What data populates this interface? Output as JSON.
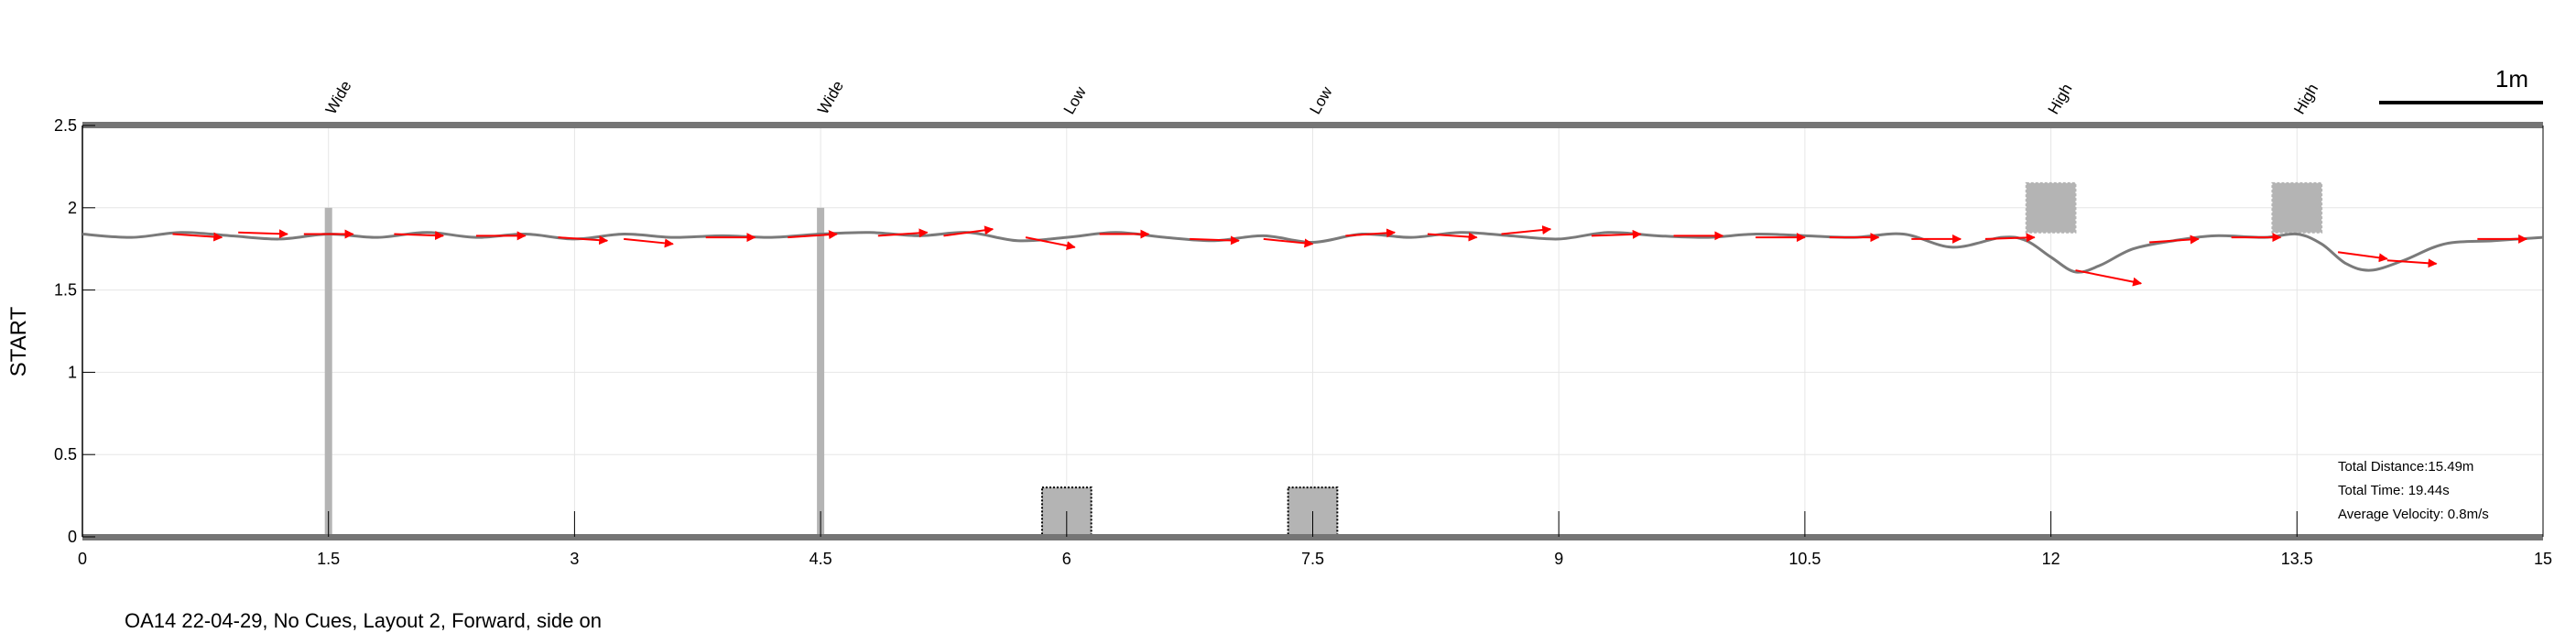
{
  "caption": "OA14 22-04-29, No Cues, Layout 2, Forward, side on",
  "chart_data": {
    "type": "line",
    "title": "",
    "xlabel": "",
    "ylabel": "START",
    "xlim": [
      0,
      15
    ],
    "ylim": [
      0,
      2.5
    ],
    "grid": true,
    "x_ticks": [
      0,
      1.5,
      3,
      4.5,
      6,
      7.5,
      9,
      10.5,
      12,
      13.5,
      15
    ],
    "x_tick_labels": [
      "0",
      "1.5",
      "3",
      "4.5",
      "6",
      "7.5",
      "9",
      "10.5",
      "12",
      "13.5",
      "15"
    ],
    "y_ticks": [
      0,
      0.5,
      1,
      1.5,
      2,
      2.5
    ],
    "y_tick_labels": [
      "0",
      "0.5",
      "1",
      "1.5",
      "2",
      "2.5"
    ],
    "path_color": "#7a7a7a",
    "arrow_color": "#ff0000",
    "obstacle_color": "#b4b4b4",
    "path": {
      "x": [
        0,
        0.3,
        0.6,
        0.9,
        1.2,
        1.5,
        1.8,
        2.1,
        2.4,
        2.7,
        3.0,
        3.3,
        3.6,
        3.9,
        4.2,
        4.5,
        4.8,
        5.1,
        5.4,
        5.7,
        6.0,
        6.3,
        6.6,
        6.9,
        7.2,
        7.5,
        7.8,
        8.1,
        8.4,
        8.7,
        9.0,
        9.3,
        9.6,
        9.9,
        10.2,
        10.5,
        10.8,
        11.1,
        11.4,
        11.7,
        11.85,
        12.0,
        12.15,
        12.3,
        12.5,
        12.75,
        13.0,
        13.3,
        13.5,
        13.65,
        13.8,
        13.95,
        14.15,
        14.4,
        14.7,
        15.0
      ],
      "y": [
        1.84,
        1.82,
        1.85,
        1.83,
        1.81,
        1.84,
        1.82,
        1.85,
        1.82,
        1.84,
        1.81,
        1.84,
        1.82,
        1.83,
        1.82,
        1.84,
        1.85,
        1.83,
        1.85,
        1.8,
        1.82,
        1.85,
        1.82,
        1.8,
        1.83,
        1.79,
        1.84,
        1.82,
        1.85,
        1.83,
        1.81,
        1.85,
        1.83,
        1.82,
        1.84,
        1.83,
        1.82,
        1.84,
        1.76,
        1.82,
        1.8,
        1.7,
        1.61,
        1.65,
        1.75,
        1.8,
        1.83,
        1.82,
        1.84,
        1.78,
        1.66,
        1.62,
        1.68,
        1.78,
        1.8,
        1.82
      ]
    },
    "velocity_arrows": [
      {
        "x": 0.55,
        "y": 1.84,
        "dx": 0.3,
        "dy": -0.02
      },
      {
        "x": 0.95,
        "y": 1.85,
        "dx": 0.3,
        "dy": -0.01
      },
      {
        "x": 1.35,
        "y": 1.84,
        "dx": 0.3,
        "dy": 0.0
      },
      {
        "x": 1.9,
        "y": 1.84,
        "dx": 0.3,
        "dy": -0.01
      },
      {
        "x": 2.4,
        "y": 1.83,
        "dx": 0.3,
        "dy": 0.0
      },
      {
        "x": 2.9,
        "y": 1.82,
        "dx": 0.3,
        "dy": -0.02
      },
      {
        "x": 3.3,
        "y": 1.81,
        "dx": 0.3,
        "dy": -0.03
      },
      {
        "x": 3.8,
        "y": 1.82,
        "dx": 0.3,
        "dy": 0.0
      },
      {
        "x": 4.3,
        "y": 1.82,
        "dx": 0.3,
        "dy": 0.02
      },
      {
        "x": 4.85,
        "y": 1.83,
        "dx": 0.3,
        "dy": 0.02
      },
      {
        "x": 5.25,
        "y": 1.83,
        "dx": 0.3,
        "dy": 0.04
      },
      {
        "x": 5.75,
        "y": 1.82,
        "dx": 0.3,
        "dy": -0.06
      },
      {
        "x": 6.2,
        "y": 1.84,
        "dx": 0.3,
        "dy": 0.0
      },
      {
        "x": 6.75,
        "y": 1.81,
        "dx": 0.3,
        "dy": -0.01
      },
      {
        "x": 7.2,
        "y": 1.81,
        "dx": 0.3,
        "dy": -0.03
      },
      {
        "x": 7.7,
        "y": 1.83,
        "dx": 0.3,
        "dy": 0.02
      },
      {
        "x": 8.2,
        "y": 1.84,
        "dx": 0.3,
        "dy": -0.02
      },
      {
        "x": 8.65,
        "y": 1.84,
        "dx": 0.3,
        "dy": 0.03
      },
      {
        "x": 9.2,
        "y": 1.83,
        "dx": 0.3,
        "dy": 0.01
      },
      {
        "x": 9.7,
        "y": 1.83,
        "dx": 0.3,
        "dy": 0.0
      },
      {
        "x": 10.2,
        "y": 1.82,
        "dx": 0.3,
        "dy": 0.0
      },
      {
        "x": 10.65,
        "y": 1.82,
        "dx": 0.3,
        "dy": 0.0
      },
      {
        "x": 11.15,
        "y": 1.81,
        "dx": 0.3,
        "dy": 0.0
      },
      {
        "x": 11.6,
        "y": 1.81,
        "dx": 0.3,
        "dy": 0.01
      },
      {
        "x": 12.15,
        "y": 1.62,
        "dx": 0.4,
        "dy": -0.08
      },
      {
        "x": 12.6,
        "y": 1.79,
        "dx": 0.3,
        "dy": 0.02
      },
      {
        "x": 13.1,
        "y": 1.82,
        "dx": 0.3,
        "dy": 0.0
      },
      {
        "x": 13.75,
        "y": 1.73,
        "dx": 0.3,
        "dy": -0.04
      },
      {
        "x": 14.05,
        "y": 1.68,
        "dx": 0.3,
        "dy": -0.02
      },
      {
        "x": 14.6,
        "y": 1.81,
        "dx": 0.3,
        "dy": 0.0
      }
    ],
    "obstacles": [
      {
        "label": "Wide",
        "x": 1.5,
        "kind": "bar",
        "y0": 0,
        "y1": 2.0
      },
      {
        "label": "Wide",
        "x": 4.5,
        "kind": "bar",
        "y0": 0,
        "y1": 2.0
      },
      {
        "label": "Low",
        "x": 6.0,
        "kind": "box",
        "y0": 0,
        "y1": 0.3,
        "width": 0.3
      },
      {
        "label": "Low",
        "x": 7.5,
        "kind": "box",
        "y0": 0,
        "y1": 0.3,
        "width": 0.3
      },
      {
        "label": "High",
        "x": 12.0,
        "kind": "hanging",
        "y0": 1.85,
        "y1": 2.15,
        "width": 0.3
      },
      {
        "label": "High",
        "x": 13.5,
        "kind": "hanging",
        "y0": 1.85,
        "y1": 2.15,
        "width": 0.3
      }
    ],
    "scale_bar": {
      "label": "1m",
      "length": 1.0
    },
    "stats": [
      "Total Distance:15.49m",
      "Total Time: 19.44s",
      "Average Velocity: 0.8m/s"
    ]
  }
}
